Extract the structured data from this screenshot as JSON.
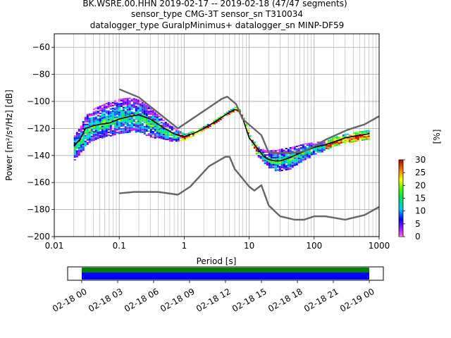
{
  "header": {
    "line1": "BK.WSRE.00.HHN   2019-02-17 -- 2019-02-18  (47/47 segments)",
    "line2": "sensor_type CMG-3T sensor_sn T310034",
    "line3": "datalogger_type GuralpMinimus+ datalogger_sn MINP-DF59"
  },
  "chart_data": [
    {
      "type": "heatmap",
      "xlabel": "Period [s]",
      "ylabel": "Power [m²/s⁴/Hz] [dB]",
      "xscale": "log",
      "xlim": [
        0.01,
        1000
      ],
      "ylim": [
        -200,
        -50
      ],
      "x_ticks": [
        {
          "value": 0.01,
          "label": "0.01"
        },
        {
          "value": 0.1,
          "label": "0.1"
        },
        {
          "value": 1,
          "label": "1"
        },
        {
          "value": 10,
          "label": "10"
        },
        {
          "value": 100,
          "label": "100"
        },
        {
          "value": 1000,
          "label": "1000"
        }
      ],
      "y_ticks": [
        {
          "value": -60,
          "label": "−60"
        },
        {
          "value": -80,
          "label": "−80"
        },
        {
          "value": -100,
          "label": "−100"
        },
        {
          "value": -120,
          "label": "−120"
        },
        {
          "value": -140,
          "label": "−140"
        },
        {
          "value": -160,
          "label": "−160"
        },
        {
          "value": -180,
          "label": "−180"
        },
        {
          "value": -200,
          "label": "−200"
        }
      ],
      "grid": true,
      "colorbar": {
        "label": "[%]",
        "range": [
          0,
          30
        ],
        "ticks": [
          {
            "value": 0,
            "label": "0"
          },
          {
            "value": 5,
            "label": "5"
          },
          {
            "value": 10,
            "label": "10"
          },
          {
            "value": 15,
            "label": "15"
          },
          {
            "value": 20,
            "label": "20"
          },
          {
            "value": 25,
            "label": "25"
          },
          {
            "value": 30,
            "label": "30"
          }
        ]
      },
      "psd_band": {
        "period": [
          0.02,
          0.025,
          0.03,
          0.04,
          0.05,
          0.07,
          0.1,
          0.15,
          0.2,
          0.3,
          0.5,
          0.7,
          1,
          1.5,
          2,
          3,
          4,
          5,
          6,
          7,
          8,
          10,
          13,
          17,
          20,
          25,
          30,
          40,
          50,
          70,
          100,
          150,
          200,
          300,
          500,
          700
        ],
        "upper": [
          -125,
          -118,
          -110,
          -105,
          -103,
          -100,
          -98,
          -97,
          -99,
          -105,
          -115,
          -120,
          -124,
          -121,
          -118,
          -113,
          -109,
          -106,
          -104,
          -106,
          -112,
          -125,
          -133,
          -136,
          -136,
          -136,
          -135,
          -134,
          -133,
          -131,
          -130,
          -129,
          -126,
          -124,
          -122,
          -121
        ],
        "lower": [
          -143,
          -138,
          -132,
          -128,
          -127,
          -125,
          -124,
          -122,
          -123,
          -126,
          -128,
          -130,
          -128,
          -124,
          -121,
          -116,
          -112,
          -109,
          -107,
          -108,
          -115,
          -128,
          -140,
          -146,
          -149,
          -151,
          -151,
          -150,
          -147,
          -143,
          -139,
          -136,
          -133,
          -131,
          -129,
          -128
        ]
      },
      "series": [
        {
          "name": "",
          "color": "#000000",
          "x": [
            0.02,
            0.025,
            0.03,
            0.04,
            0.05,
            0.07,
            0.1,
            0.15,
            0.2,
            0.3,
            0.5,
            0.7,
            1,
            1.5,
            2,
            3,
            4,
            5,
            6,
            7,
            8,
            10,
            13,
            17,
            20,
            25,
            30,
            40,
            50,
            70,
            100,
            150,
            200,
            300,
            500,
            700
          ],
          "y": [
            -133,
            -128,
            -120,
            -118,
            -117,
            -116,
            -113,
            -111,
            -110,
            -113,
            -120,
            -124,
            -126,
            -123,
            -120,
            -115,
            -111,
            -108,
            -106,
            -107,
            -113,
            -127,
            -134,
            -141,
            -143,
            -144,
            -144,
            -142,
            -140,
            -137,
            -134,
            -132,
            -130,
            -127,
            -125,
            -124
          ]
        },
        {
          "name": "",
          "color": "#666666",
          "x": [
            0.1,
            0.2,
            0.8,
            3.8,
            4.6,
            6.3,
            7.9,
            15.4,
            20,
            21.9,
            31.6,
            45,
            70,
            101,
            154,
            328,
            600,
            1000
          ],
          "y": [
            -91,
            -97,
            -120,
            -98,
            -96.5,
            -102,
            -113,
            -125,
            -138,
            -138,
            -138,
            -138,
            -137,
            -133,
            -128,
            -121,
            -117,
            -111
          ]
        },
        {
          "name": "",
          "color": "#666666",
          "x": [
            0.1,
            0.17,
            0.4,
            0.8,
            1.24,
            2.4,
            4.3,
            5,
            6,
            10,
            12,
            15.4,
            20,
            30,
            50,
            70,
            100,
            150,
            300,
            600,
            1000
          ],
          "y": [
            -168,
            -167,
            -167,
            -169,
            -163,
            -148,
            -141,
            -141,
            -150,
            -163,
            -166,
            -162,
            -177,
            -185,
            -187.5,
            -187.5,
            -185,
            -185,
            -187.5,
            -184,
            -178
          ]
        }
      ]
    },
    {
      "type": "bar",
      "x_ticks": [
        "02-18 00",
        "02-18 03",
        "02-18 06",
        "02-18 09",
        "02-18 12",
        "02-18 15",
        "02-18 18",
        "02-18 21",
        "02-19 00"
      ],
      "series": [
        {
          "name": "",
          "color": "#008000",
          "x": [
            "02-18 00",
            "02-19 00"
          ]
        },
        {
          "name": "",
          "color": "#0000ff",
          "x": [
            "02-18 00",
            "02-19 00"
          ]
        }
      ]
    }
  ]
}
